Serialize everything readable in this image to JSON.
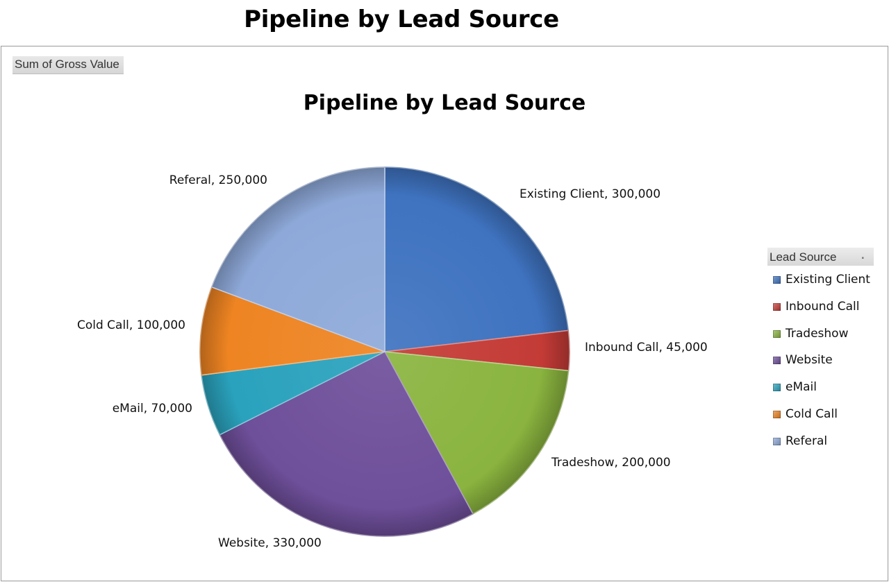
{
  "sheet_title": "Pipeline by Lead Source",
  "field_button": "Sum of Gross Value",
  "legend_title": "Lead Source",
  "chart_data": {
    "type": "pie",
    "title": "Pipeline by Lead Source",
    "legend_placement": "right",
    "slices": [
      {
        "label": "Existing Client",
        "value": 300000,
        "display": "300,000",
        "color": "#3f73c0"
      },
      {
        "label": "Inbound Call",
        "value": 45000,
        "display": "45,000",
        "color": "#c43b36"
      },
      {
        "label": "Tradeshow",
        "value": 200000,
        "display": "200,000",
        "color": "#8ab43f"
      },
      {
        "label": "Website",
        "value": 330000,
        "display": "330,000",
        "color": "#6e4f9a"
      },
      {
        "label": "eMail",
        "value": 70000,
        "display": "70,000",
        "color": "#2aa2bd"
      },
      {
        "label": "Cold Call",
        "value": 100000,
        "display": "100,000",
        "color": "#ee8422"
      },
      {
        "label": "Referal",
        "value": 250000,
        "display": "250,000",
        "color": "#8ea9d9"
      }
    ]
  }
}
